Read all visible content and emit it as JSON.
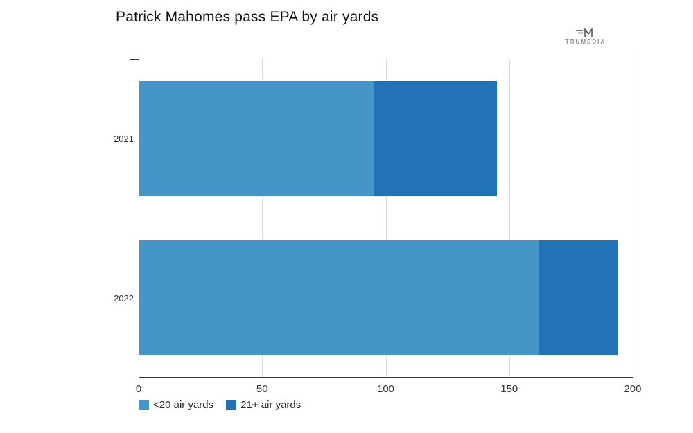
{
  "title": "Patrick Mahomes pass EPA by air yards",
  "logo": {
    "text": "TRUMEDIA"
  },
  "chart_data": {
    "type": "bar",
    "orientation": "horizontal",
    "stacked": true,
    "title": "Patrick Mahomes pass EPA by air yards",
    "categories": [
      "2021",
      "2022"
    ],
    "series": [
      {
        "name": "<20 air yards",
        "color": "#4595c8",
        "values": [
          95,
          162
        ]
      },
      {
        "name": "21+ air yards",
        "color": "#2173b6",
        "values": [
          50,
          32
        ]
      }
    ],
    "totals": [
      145,
      194
    ],
    "xlim": [
      0,
      200
    ],
    "xticks": [
      0,
      50,
      100,
      150,
      200
    ],
    "grid": true,
    "legend_position": "bottom-left",
    "colors": {
      "axis": "#3a3a3a",
      "gridline": "#dcdcdc"
    }
  }
}
